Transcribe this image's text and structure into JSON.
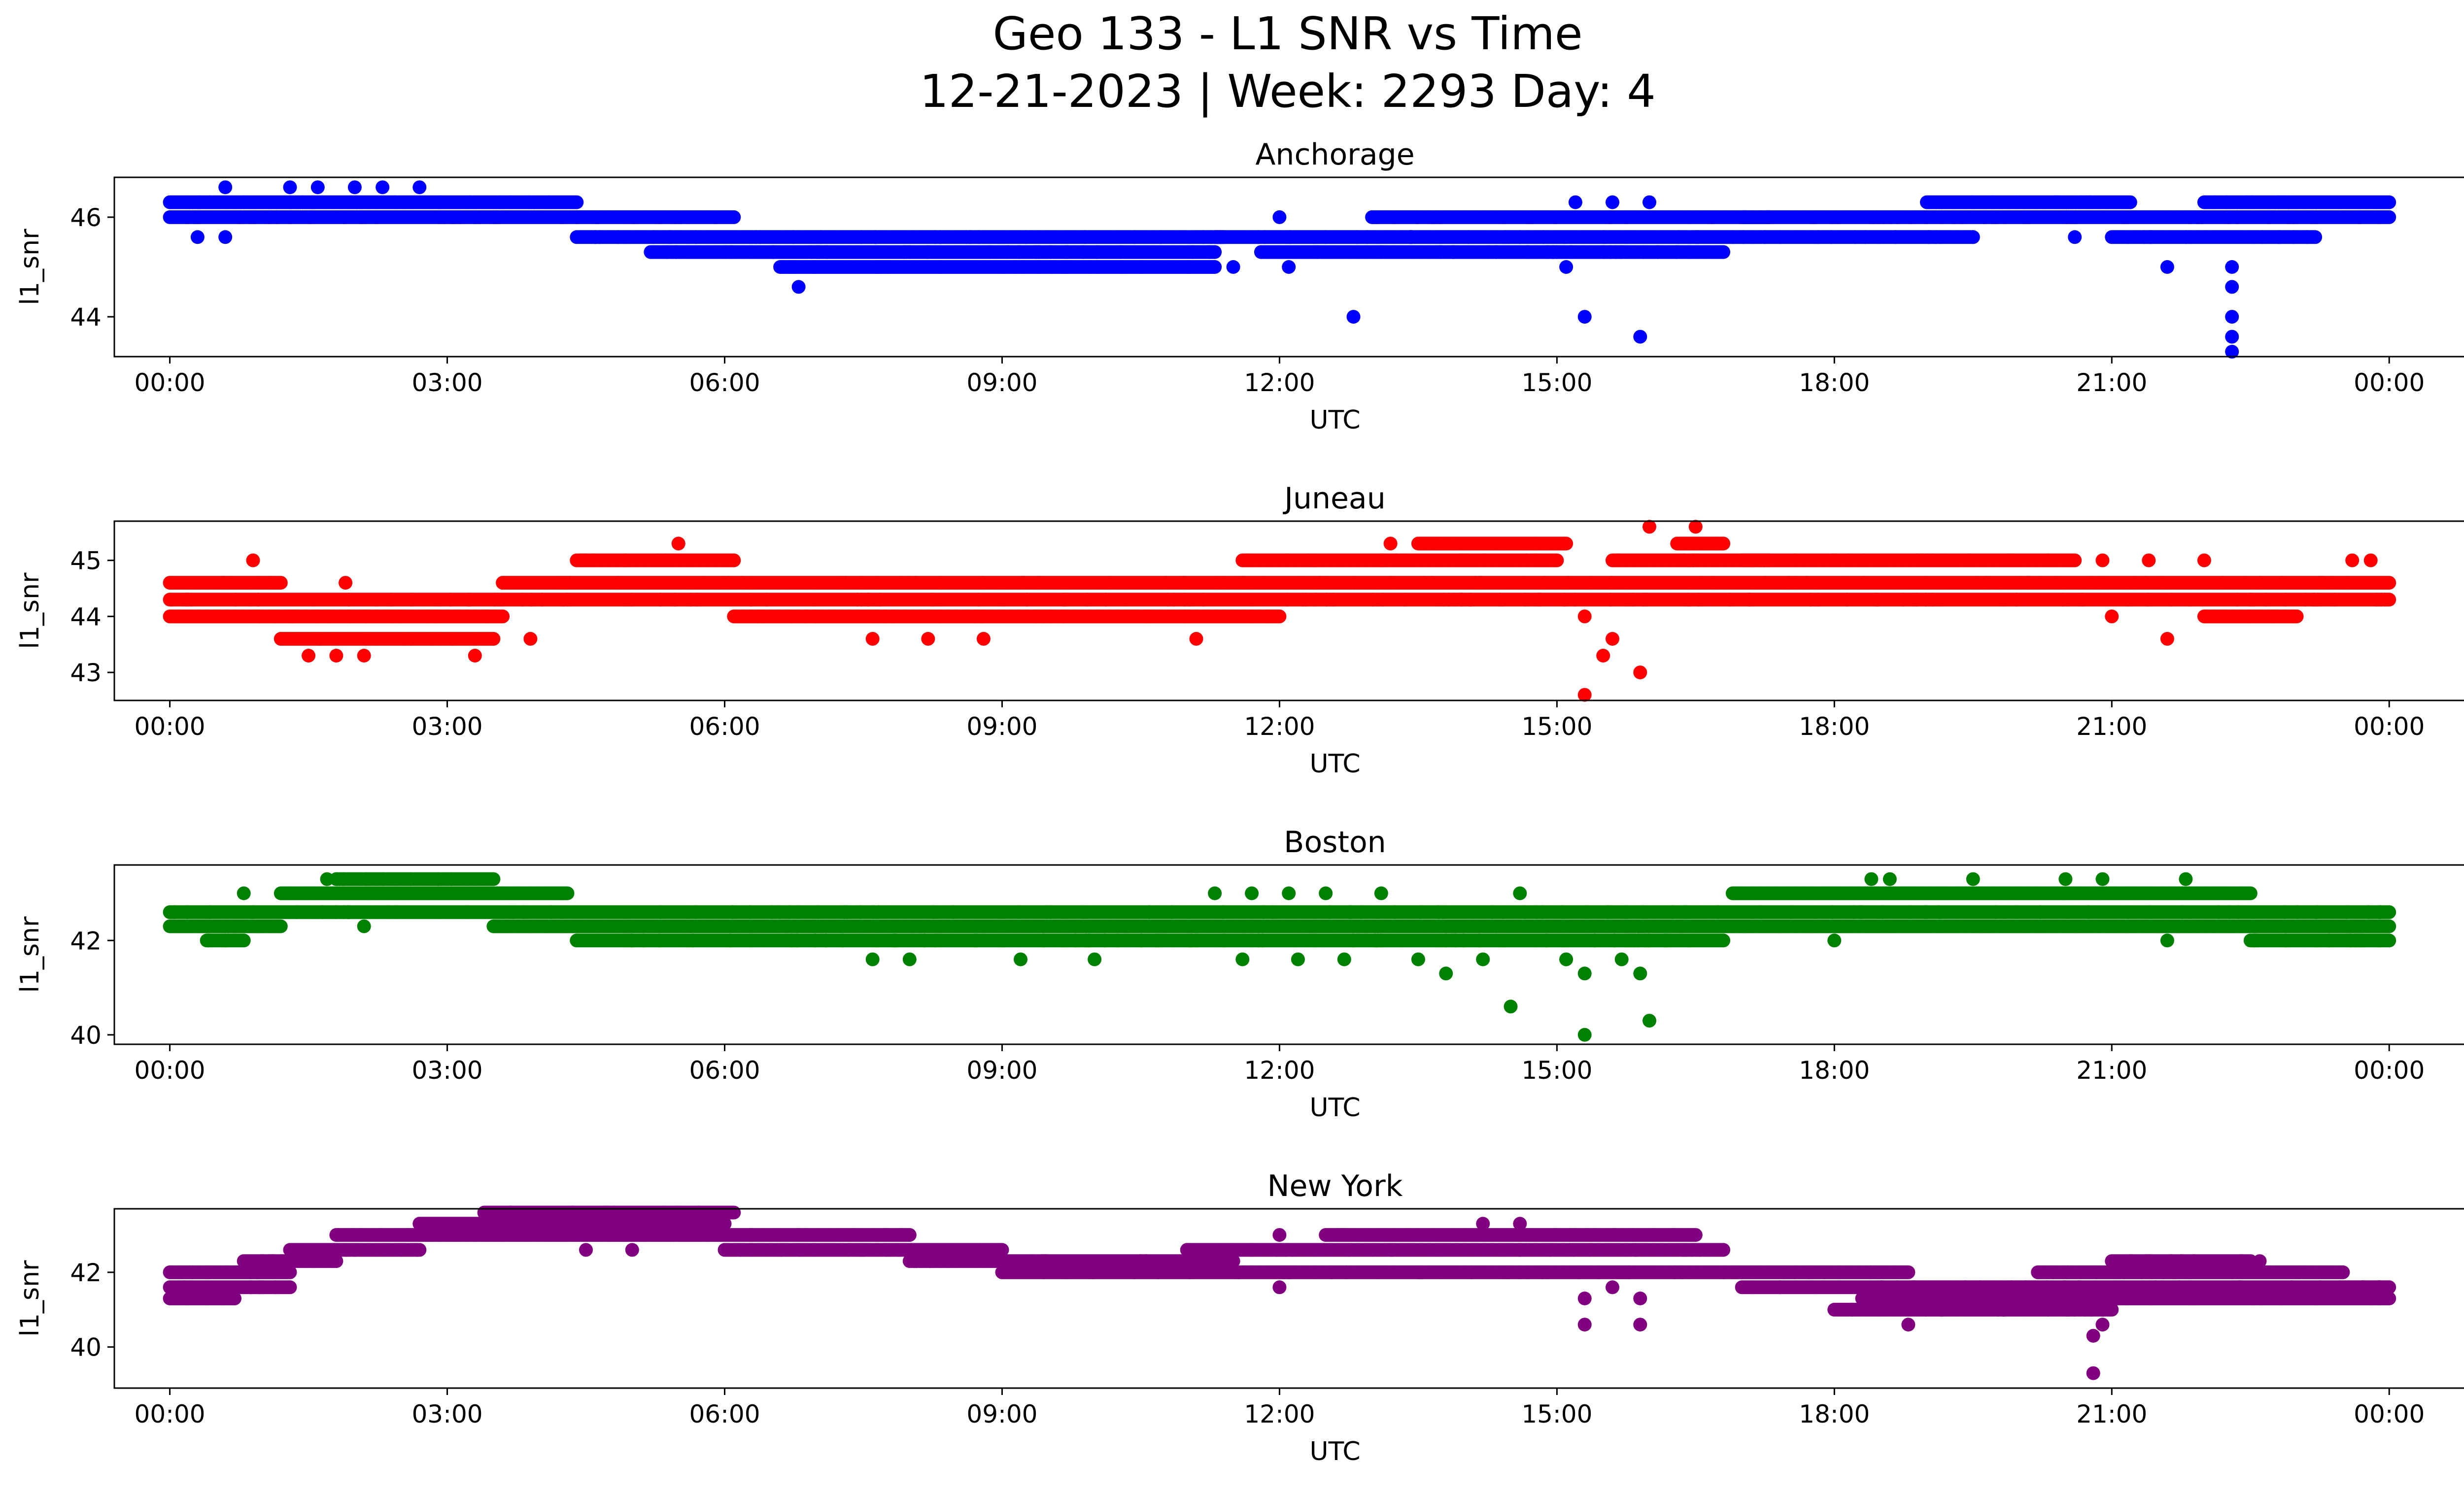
{
  "chart_data": {
    "title_line1": "Geo 133 - L1 SNR vs Time",
    "title_line2": "12-21-2023 | Week: 2293 Day: 4",
    "type": "scatter",
    "x_ticks": [
      "00:00",
      "03:00",
      "06:00",
      "09:00",
      "12:00",
      "15:00",
      "18:00",
      "21:00",
      "00:00"
    ],
    "x_range_hours": [
      -0.6,
      25.8
    ],
    "grid": false,
    "charts": [
      {
        "title": "Anchorage",
        "xlabel": "UTC",
        "ylabel": "l1_snr",
        "color": "#0000ff",
        "ylim": [
          43.2,
          46.8
        ],
        "yticks": [
          44,
          46
        ],
        "ytick_labels": [
          "44",
          "46"
        ],
        "series": [
          {
            "x": [
              0.0,
              4.4
            ],
            "y": 46.0
          },
          {
            "x": [
              0.0,
              4.4
            ],
            "y": 46.3
          },
          {
            "x": [
              4.4,
              6.1
            ],
            "y": 46.0
          },
          {
            "x": [
              4.4,
              11.4
            ],
            "y": 45.6
          },
          {
            "x": [
              5.2,
              8.0
            ],
            "y": 45.3
          },
          {
            "x": [
              6.6,
              11.3
            ],
            "y": 45.0
          },
          {
            "x": [
              8.0,
              11.3
            ],
            "y": 45.3
          },
          {
            "x": [
              11.3,
              19.5
            ],
            "y": 45.6
          },
          {
            "x": [
              11.8,
              16.8
            ],
            "y": 45.3
          },
          {
            "x": [
              13.0,
              17.3
            ],
            "y": 46.0
          },
          {
            "x": [
              17.0,
              19.0
            ],
            "y": 46.0
          },
          {
            "x": [
              19.0,
              21.2
            ],
            "y": 46.3
          },
          {
            "x": [
              19.0,
              24.0
            ],
            "y": 46.0
          },
          {
            "x": [
              21.0,
              23.2
            ],
            "y": 45.6
          },
          {
            "x": [
              22.0,
              24.0
            ],
            "y": 46.3
          }
        ],
        "points": [
          [
            0.6,
            46.6
          ],
          [
            1.3,
            46.6
          ],
          [
            1.6,
            46.6
          ],
          [
            2.0,
            46.6
          ],
          [
            2.3,
            46.6
          ],
          [
            2.7,
            46.6
          ],
          [
            0.6,
            45.6
          ],
          [
            0.3,
            45.6
          ],
          [
            6.8,
            44.6
          ],
          [
            12.8,
            44.0
          ],
          [
            15.1,
            45.0
          ],
          [
            15.3,
            44.0
          ],
          [
            15.9,
            43.6
          ],
          [
            15.2,
            46.3
          ],
          [
            15.6,
            46.3
          ],
          [
            16.0,
            46.3
          ],
          [
            21.6,
            45.0
          ],
          [
            22.3,
            45.0
          ],
          [
            22.3,
            44.6
          ],
          [
            22.3,
            44.0
          ],
          [
            22.3,
            43.6
          ],
          [
            22.3,
            43.3
          ],
          [
            20.6,
            45.6
          ],
          [
            22.8,
            46.3
          ],
          [
            12.0,
            46.0
          ],
          [
            12.1,
            45.0
          ],
          [
            11.5,
            45.0
          ]
        ]
      },
      {
        "title": "Juneau",
        "xlabel": "UTC",
        "ylabel": "l1_snr",
        "color": "#ff0000",
        "ylim": [
          42.5,
          45.7
        ],
        "yticks": [
          43,
          44,
          45
        ],
        "ytick_labels": [
          "43",
          "44",
          "45"
        ],
        "series": [
          {
            "x": [
              0.0,
              4.3
            ],
            "y": 44.3
          },
          {
            "x": [
              0.0,
              3.6
            ],
            "y": 44.0
          },
          {
            "x": [
              0.0,
              1.2
            ],
            "y": 44.6
          },
          {
            "x": [
              1.2,
              3.5
            ],
            "y": 43.6
          },
          {
            "x": [
              3.6,
              24.0
            ],
            "y": 44.6
          },
          {
            "x": [
              4.3,
              24.0
            ],
            "y": 44.3
          },
          {
            "x": [
              4.4,
              6.1
            ],
            "y": 45.0
          },
          {
            "x": [
              6.1,
              12.0
            ],
            "y": 44.0
          },
          {
            "x": [
              11.6,
              15.0
            ],
            "y": 45.0
          },
          {
            "x": [
              13.5,
              15.1
            ],
            "y": 45.3
          },
          {
            "x": [
              15.6,
              17.3
            ],
            "y": 45.0
          },
          {
            "x": [
              16.3,
              16.8
            ],
            "y": 45.3
          },
          {
            "x": [
              17.0,
              19.0
            ],
            "y": 45.0
          },
          {
            "x": [
              19.0,
              20.6
            ],
            "y": 45.0
          },
          {
            "x": [
              22.0,
              23.0
            ],
            "y": 44.0
          }
        ],
        "points": [
          [
            0.9,
            45.0
          ],
          [
            1.5,
            43.3
          ],
          [
            1.8,
            43.3
          ],
          [
            2.1,
            43.3
          ],
          [
            3.3,
            43.3
          ],
          [
            1.9,
            44.6
          ],
          [
            5.5,
            45.3
          ],
          [
            7.6,
            43.6
          ],
          [
            8.2,
            43.6
          ],
          [
            8.8,
            43.6
          ],
          [
            11.1,
            43.6
          ],
          [
            15.3,
            42.6
          ],
          [
            15.5,
            43.3
          ],
          [
            15.6,
            43.6
          ],
          [
            15.9,
            43.0
          ],
          [
            16.0,
            45.6
          ],
          [
            16.5,
            45.6
          ],
          [
            15.3,
            44.0
          ],
          [
            21.6,
            43.6
          ],
          [
            13.2,
            45.3
          ],
          [
            21.0,
            44.0
          ],
          [
            23.8,
            45.0
          ],
          [
            23.6,
            45.0
          ],
          [
            21.4,
            45.0
          ],
          [
            22.0,
            45.0
          ],
          [
            20.9,
            45.0
          ],
          [
            15.2,
            44.3
          ],
          [
            3.9,
            43.6
          ]
        ]
      },
      {
        "title": "Boston",
        "xlabel": "UTC",
        "ylabel": "l1_snr",
        "color": "#008000",
        "ylim": [
          39.8,
          43.6
        ],
        "yticks": [
          40,
          42
        ],
        "ytick_labels": [
          "40",
          "42"
        ],
        "series": [
          {
            "x": [
              0.0,
              1.2
            ],
            "y": 42.3
          },
          {
            "x": [
              0.0,
              24.0
            ],
            "y": 42.6
          },
          {
            "x": [
              1.2,
              4.3
            ],
            "y": 43.0
          },
          {
            "x": [
              1.8,
              3.5
            ],
            "y": 43.3
          },
          {
            "x": [
              3.5,
              24.0
            ],
            "y": 42.3
          },
          {
            "x": [
              4.4,
              16.8
            ],
            "y": 42.0
          },
          {
            "x": [
              16.9,
              22.5
            ],
            "y": 43.0
          },
          {
            "x": [
              22.5,
              24.0
            ],
            "y": 42.0
          },
          {
            "x": [
              0.4,
              0.8
            ],
            "y": 42.0
          }
        ],
        "points": [
          [
            0.8,
            43.0
          ],
          [
            1.7,
            43.3
          ],
          [
            2.1,
            42.3
          ],
          [
            7.6,
            41.6
          ],
          [
            8.0,
            41.6
          ],
          [
            9.2,
            41.6
          ],
          [
            10.0,
            41.6
          ],
          [
            11.3,
            43.0
          ],
          [
            11.7,
            43.0
          ],
          [
            12.1,
            43.0
          ],
          [
            12.5,
            43.0
          ],
          [
            13.1,
            43.0
          ],
          [
            11.6,
            41.6
          ],
          [
            12.2,
            41.6
          ],
          [
            12.7,
            41.6
          ],
          [
            13.5,
            41.6
          ],
          [
            13.8,
            41.3
          ],
          [
            14.2,
            41.6
          ],
          [
            14.5,
            40.6
          ],
          [
            14.6,
            43.0
          ],
          [
            15.3,
            40.0
          ],
          [
            15.3,
            41.3
          ],
          [
            15.1,
            41.6
          ],
          [
            15.7,
            41.6
          ],
          [
            15.9,
            41.3
          ],
          [
            16.0,
            40.3
          ],
          [
            15.8,
            42.0
          ],
          [
            18.4,
            43.3
          ],
          [
            18.6,
            43.3
          ],
          [
            19.5,
            43.3
          ],
          [
            20.5,
            43.3
          ],
          [
            20.9,
            43.3
          ],
          [
            21.8,
            43.3
          ],
          [
            21.6,
            42.0
          ],
          [
            18.0,
            42.0
          ]
        ]
      },
      {
        "title": "New York",
        "xlabel": "UTC",
        "ylabel": "l1_snr",
        "color": "#800080",
        "ylim": [
          38.9,
          43.7
        ],
        "yticks": [
          40,
          42
        ],
        "ytick_labels": [
          "40",
          "42"
        ],
        "series": [
          {
            "x": [
              0.0,
              0.7
            ],
            "y": 41.3
          },
          {
            "x": [
              0.0,
              1.3
            ],
            "y": 41.6
          },
          {
            "x": [
              0.0,
              1.3
            ],
            "y": 42.0
          },
          {
            "x": [
              0.8,
              1.8
            ],
            "y": 42.3
          },
          {
            "x": [
              1.3,
              2.7
            ],
            "y": 42.6
          },
          {
            "x": [
              1.8,
              8.0
            ],
            "y": 43.0
          },
          {
            "x": [
              2.7,
              6.0
            ],
            "y": 43.3
          },
          {
            "x": [
              3.4,
              6.1
            ],
            "y": 43.6
          },
          {
            "x": [
              6.0,
              9.0
            ],
            "y": 42.6
          },
          {
            "x": [
              8.0,
              11.5
            ],
            "y": 42.3
          },
          {
            "x": [
              9.0,
              16.8
            ],
            "y": 42.0
          },
          {
            "x": [
              11.0,
              16.8
            ],
            "y": 42.6
          },
          {
            "x": [
              12.5,
              16.5
            ],
            "y": 43.0
          },
          {
            "x": [
              16.8,
              18.8
            ],
            "y": 42.0
          },
          {
            "x": [
              17.0,
              24.0
            ],
            "y": 41.6
          },
          {
            "x": [
              18.3,
              24.0
            ],
            "y": 41.3
          },
          {
            "x": [
              20.2,
              23.5
            ],
            "y": 42.0
          },
          {
            "x": [
              21.0,
              22.5
            ],
            "y": 42.3
          },
          {
            "x": [
              18.0,
              21.0
            ],
            "y": 41.0
          }
        ],
        "points": [
          [
            0.2,
            41.3
          ],
          [
            12.0,
            41.6
          ],
          [
            12.0,
            43.0
          ],
          [
            14.2,
            43.3
          ],
          [
            14.6,
            43.3
          ],
          [
            15.3,
            40.6
          ],
          [
            15.3,
            41.3
          ],
          [
            15.6,
            41.6
          ],
          [
            15.9,
            41.3
          ],
          [
            15.9,
            40.6
          ],
          [
            15.4,
            43.0
          ],
          [
            18.8,
            40.6
          ],
          [
            20.8,
            40.3
          ],
          [
            20.8,
            39.3
          ],
          [
            20.9,
            40.6
          ],
          [
            20.9,
            41.0
          ],
          [
            22.6,
            42.3
          ],
          [
            21.2,
            42.3
          ],
          [
            4.5,
            42.6
          ],
          [
            5.0,
            42.6
          ],
          [
            7.5,
            42.6
          ],
          [
            8.2,
            42.6
          ]
        ]
      }
    ]
  }
}
